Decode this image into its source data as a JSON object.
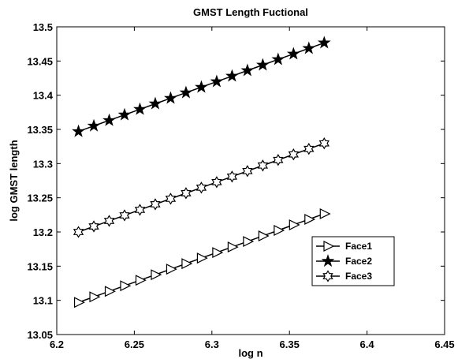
{
  "chart_data": {
    "type": "line",
    "title": "GMST Length Fuctional",
    "xlabel": "log n",
    "ylabel": "log GMST length",
    "xlim": [
      6.2,
      6.45
    ],
    "ylim": [
      13.05,
      13.5
    ],
    "xticks": [
      "6.2",
      "6.25",
      "6.3",
      "6.35",
      "6.4",
      "6.45"
    ],
    "yticks": [
      "13.05",
      "13.1",
      "13.15",
      "13.2",
      "13.25",
      "13.3",
      "13.35",
      "13.4",
      "13.45",
      "13.5"
    ],
    "grid": false,
    "legend_position": "lower-right",
    "x": [
      6.214,
      6.2239,
      6.2338,
      6.2437,
      6.2536,
      6.2635,
      6.2734,
      6.2833,
      6.2932,
      6.3031,
      6.313,
      6.3229,
      6.3328,
      6.3427,
      6.3526,
      6.3625,
      6.3724
    ],
    "series": [
      {
        "name": "Face1",
        "marker": "triangle-right",
        "values": [
          13.097,
          13.1051,
          13.1132,
          13.1213,
          13.1294,
          13.1375,
          13.1456,
          13.1537,
          13.1618,
          13.1699,
          13.178,
          13.1861,
          13.1942,
          13.2023,
          13.2104,
          13.2185,
          13.2266
        ]
      },
      {
        "name": "Face2",
        "marker": "filled-star",
        "values": [
          13.347,
          13.3551,
          13.3632,
          13.3713,
          13.3794,
          13.3875,
          13.3956,
          13.4037,
          13.4118,
          13.4199,
          13.428,
          13.4361,
          13.4442,
          13.4523,
          13.4604,
          13.4685,
          13.4766
        ]
      },
      {
        "name": "Face3",
        "marker": "hexagram",
        "values": [
          13.2,
          13.2081,
          13.2162,
          13.2243,
          13.2324,
          13.2405,
          13.2486,
          13.2567,
          13.2648,
          13.2729,
          13.281,
          13.2891,
          13.2972,
          13.3053,
          13.3134,
          13.3215,
          13.3296
        ]
      }
    ],
    "colors": {
      "line": "#000000",
      "background": "#ffffff"
    }
  }
}
